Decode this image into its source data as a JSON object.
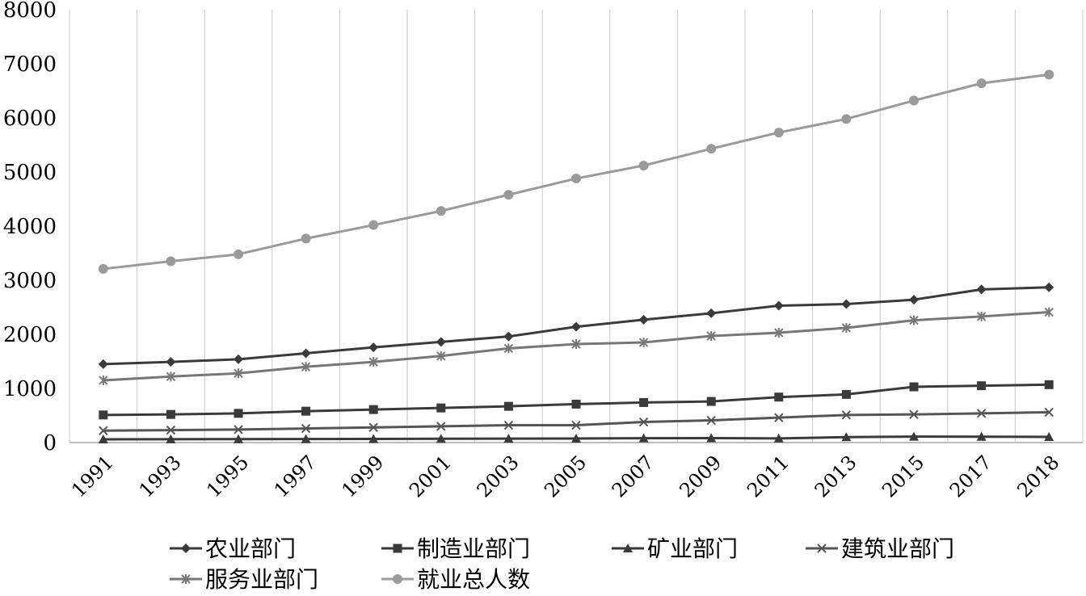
{
  "chart_data": {
    "type": "line",
    "title": "",
    "xlabel": "",
    "ylabel": "",
    "categories": [
      "1991",
      "1993",
      "1995",
      "1997",
      "1999",
      "2001",
      "2003",
      "2005",
      "2007",
      "2009",
      "2011",
      "2013",
      "2015",
      "2017",
      "2018"
    ],
    "ylim": [
      0,
      8000
    ],
    "yticks": [
      "0",
      "1000",
      "2000",
      "3000",
      "4000",
      "5000",
      "6000",
      "7000",
      "8000"
    ],
    "grid": "vertical",
    "legend_position": "bottom",
    "series": [
      {
        "name": "农业部门",
        "marker": "diamond",
        "color": "#3a3a3a",
        "values": [
          1450,
          1490,
          1540,
          1650,
          1760,
          1860,
          1960,
          2140,
          2270,
          2390,
          2530,
          2560,
          2640,
          2830,
          2870
        ]
      },
      {
        "name": "制造业部门",
        "marker": "square",
        "color": "#3a3a3a",
        "values": [
          510,
          520,
          540,
          580,
          610,
          640,
          670,
          710,
          740,
          760,
          840,
          890,
          1030,
          1050,
          1070
        ]
      },
      {
        "name": "矿业部门",
        "marker": "triangle",
        "color": "#3a3a3a",
        "values": [
          60,
          62,
          64,
          66,
          68,
          70,
          72,
          74,
          80,
          82,
          76,
          100,
          110,
          108,
          105
        ]
      },
      {
        "name": "建筑业部门",
        "marker": "x",
        "color": "#555555",
        "values": [
          220,
          230,
          240,
          260,
          280,
          300,
          320,
          320,
          380,
          410,
          460,
          510,
          520,
          540,
          560
        ]
      },
      {
        "name": "服务业部门",
        "marker": "star",
        "color": "#777777",
        "values": [
          1150,
          1220,
          1280,
          1400,
          1490,
          1600,
          1740,
          1820,
          1850,
          1970,
          2030,
          2120,
          2260,
          2330,
          2410
        ]
      },
      {
        "name": "就业总人数",
        "marker": "circle",
        "color": "#9a9a9a",
        "values": [
          3210,
          3350,
          3480,
          3770,
          4020,
          4280,
          4580,
          4880,
          5120,
          5430,
          5730,
          5980,
          6320,
          6640,
          6800
        ]
      }
    ]
  }
}
